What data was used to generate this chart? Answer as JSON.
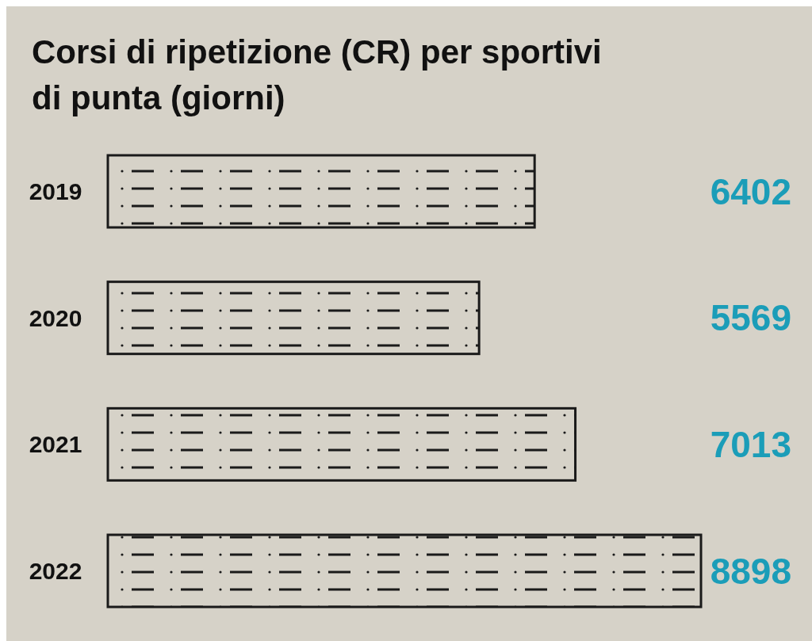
{
  "chart_data": {
    "type": "bar",
    "orientation": "horizontal",
    "title": "Corsi di ripetizione (CR) per sportivi di punta (giorni)",
    "categories": [
      "2019",
      "2020",
      "2021",
      "2022"
    ],
    "values": [
      6402,
      5569,
      7013,
      8898
    ],
    "color": "#1a1a1a",
    "data_labels": true
  }
}
